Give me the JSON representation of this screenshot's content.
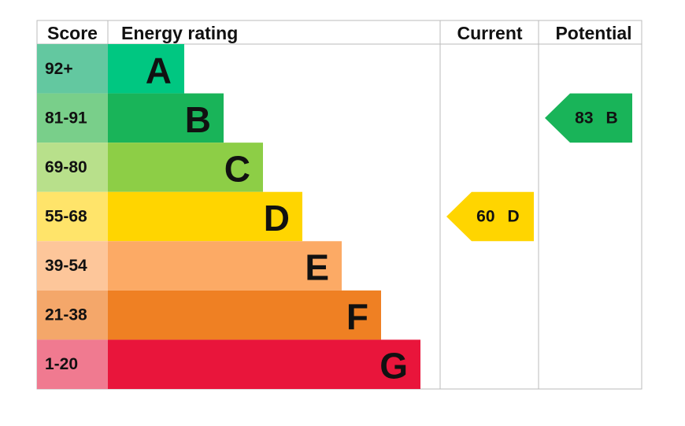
{
  "header": [
    "Score",
    "Energy rating",
    "Current",
    "Potential"
  ],
  "bands": [
    {
      "score": "92+",
      "letter": "A",
      "color": "#00c781",
      "score_color": "#63c8a0"
    },
    {
      "score": "81-91",
      "letter": "B",
      "color": "#19b459",
      "score_color": "#79cf8a"
    },
    {
      "score": "69-80",
      "letter": "C",
      "color": "#8dce46",
      "score_color": "#b8e08b"
    },
    {
      "score": "55-68",
      "letter": "D",
      "color": "#ffd500",
      "score_color": "#ffe46a"
    },
    {
      "score": "39-54",
      "letter": "E",
      "color": "#fcaa65",
      "score_color": "#fdc69a"
    },
    {
      "score": "21-38",
      "letter": "F",
      "color": "#ef8023",
      "score_color": "#f4a76a"
    },
    {
      "score": "1-20",
      "letter": "G",
      "color": "#e9153b",
      "score_color": "#f07a90"
    }
  ],
  "current": {
    "value": 60,
    "letter": "D"
  },
  "potential": {
    "value": 83,
    "letter": "B"
  }
}
